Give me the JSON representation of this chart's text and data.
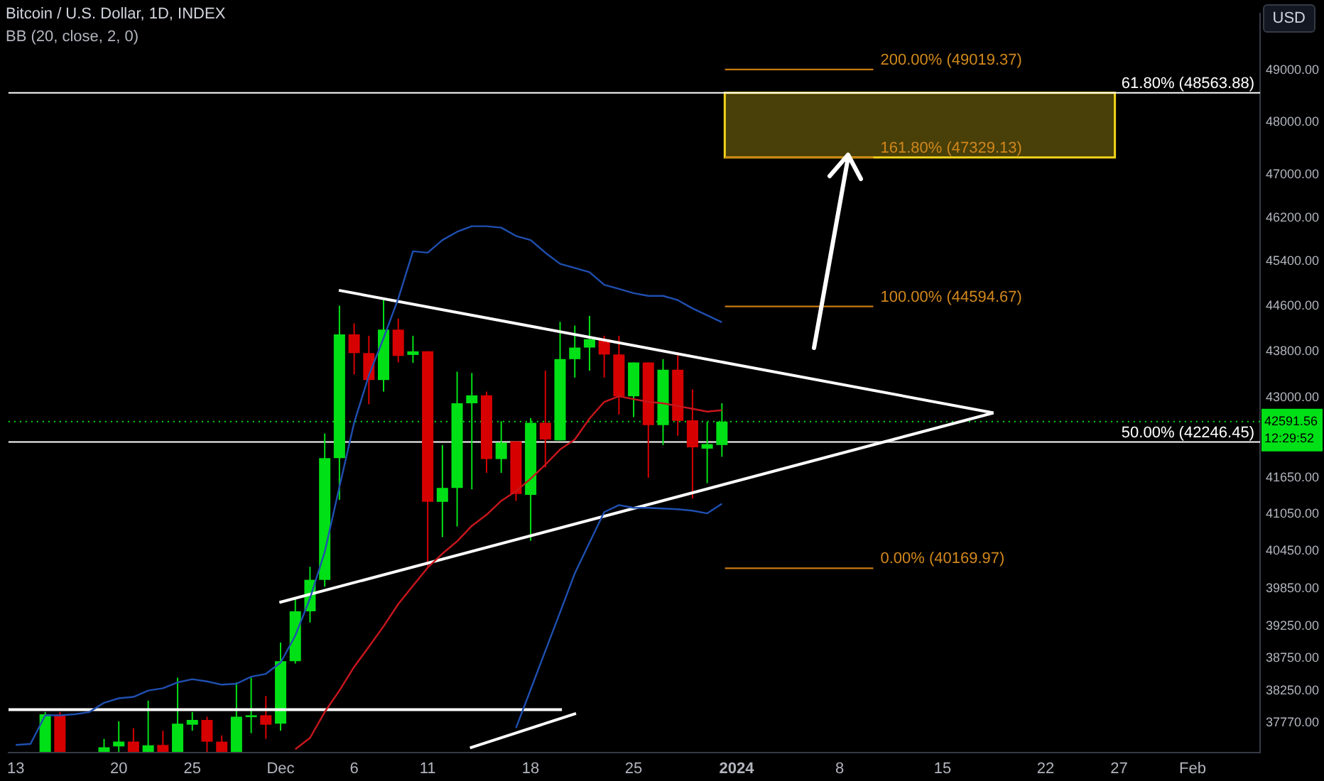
{
  "chart_data": {
    "type": "candlestick",
    "title": "Bitcoin / U.S. Dollar, 1D, INDEX",
    "subtitle": "BB (20, close, 2, 0)",
    "ylabel": "USD",
    "log": true,
    "x": [
      "2023-11-15",
      "2023-11-16",
      "2023-11-19",
      "2023-11-20",
      "2023-11-21",
      "2023-11-22",
      "2023-11-23",
      "2023-11-24",
      "2023-11-25",
      "2023-11-26",
      "2023-11-27",
      "2023-11-28",
      "2023-11-29",
      "2023-11-30",
      "2023-12-01",
      "2023-12-02",
      "2023-12-03",
      "2023-12-04",
      "2023-12-05",
      "2023-12-06",
      "2023-12-07",
      "2023-12-08",
      "2023-12-09",
      "2023-12-10",
      "2023-12-11",
      "2023-12-12",
      "2023-12-13",
      "2023-12-14",
      "2023-12-15",
      "2023-12-16",
      "2023-12-17",
      "2023-12-18",
      "2023-12-19",
      "2023-12-20",
      "2023-12-21",
      "2023-12-22",
      "2023-12-23",
      "2023-12-24",
      "2023-12-25",
      "2023-12-26",
      "2023-12-27",
      "2023-12-28",
      "2023-12-29",
      "2023-12-30",
      "2023-12-31"
    ],
    "ohlc": [
      [
        37330,
        37930,
        37330,
        37895
      ],
      [
        37895,
        37930,
        37330,
        37330
      ],
      [
        37330,
        37525,
        37330,
        37399
      ],
      [
        37413,
        37789,
        37330,
        37483
      ],
      [
        37483,
        37683,
        37330,
        37330
      ],
      [
        37330,
        38104,
        37330,
        37428
      ],
      [
        37434,
        37647,
        37330,
        37330
      ],
      [
        37330,
        38453,
        37330,
        37753
      ],
      [
        37738,
        37929,
        37647,
        37810
      ],
      [
        37810,
        37859,
        37330,
        37483
      ],
      [
        37483,
        37577,
        37330,
        37330
      ],
      [
        37330,
        38381,
        37330,
        37859
      ],
      [
        37852,
        38453,
        37611,
        37880
      ],
      [
        37880,
        38173,
        37525,
        37738
      ],
      [
        37753,
        38996,
        37647,
        38707
      ],
      [
        38707,
        39690,
        38670,
        39485
      ],
      [
        39485,
        40193,
        39309,
        39985
      ],
      [
        39985,
        42390,
        39875,
        41976
      ],
      [
        41976,
        44610,
        41281,
        44101
      ],
      [
        44101,
        44297,
        43401,
        43772
      ],
      [
        43772,
        44076,
        42887,
        43305
      ],
      [
        43305,
        44734,
        43105,
        44184
      ],
      [
        44184,
        44380,
        43609,
        43723
      ],
      [
        43740,
        44076,
        43602,
        43803
      ],
      [
        43803,
        43803,
        40206,
        41249
      ],
      [
        41249,
        42195,
        40673,
        41479
      ],
      [
        41479,
        43449,
        40846,
        42904
      ],
      [
        42904,
        43425,
        41456,
        43040
      ],
      [
        43040,
        43105,
        41730,
        41960
      ],
      [
        41960,
        42597,
        41730,
        42235
      ],
      [
        42259,
        42259,
        41265,
        41380
      ],
      [
        41365,
        42651,
        40612,
        42572
      ],
      [
        42572,
        43465,
        41820,
        42290
      ],
      [
        42274,
        44322,
        42274,
        43667
      ],
      [
        43667,
        44256,
        43346,
        43869
      ],
      [
        43869,
        44428,
        43465,
        44016
      ],
      [
        44016,
        44076,
        43346,
        43747
      ],
      [
        43747,
        44076,
        42711,
        43024
      ],
      [
        43024,
        43609,
        42667,
        43609
      ],
      [
        43609,
        43609,
        41648,
        42532
      ],
      [
        42532,
        43667,
        42195,
        43482
      ],
      [
        43482,
        43789,
        42352,
        42603
      ],
      [
        42613,
        43144,
        41304,
        42157
      ],
      [
        42134,
        42588,
        41557,
        42211
      ],
      [
        42195,
        42904,
        41999,
        42591.56
      ]
    ],
    "colors": [
      "#00e016",
      "#d70000",
      "#00e016",
      "#00e016",
      "#d70000",
      "#00e016",
      "#d70000",
      "#00e016",
      "#00e016",
      "#d70000",
      "#d70000",
      "#00e016",
      "#00e016",
      "#d70000",
      "#00e016",
      "#00e016",
      "#00e016",
      "#00e016",
      "#00e016",
      "#d70000",
      "#d70000",
      "#00e016",
      "#d70000",
      "#00e016",
      "#d70000",
      "#00e016",
      "#00e016",
      "#00e016",
      "#d70000",
      "#00e016",
      "#d70000",
      "#00e016",
      "#d70000",
      "#00e016",
      "#00e016",
      "#00e016",
      "#d70000",
      "#d70000",
      "#00e016",
      "#d70000",
      "#00e016",
      "#d70000",
      "#d70000",
      "#00e016",
      "#00e016"
    ],
    "series": [
      {
        "type": "line",
        "color": "#1f4fb0",
        "x": [
          "2023-11-13",
          "2023-11-14",
          "2023-11-15",
          "2023-11-16",
          "2023-11-17",
          "2023-11-18",
          "2023-11-19",
          "2023-11-20",
          "2023-11-21",
          "2023-11-22",
          "2023-11-23",
          "2023-11-24",
          "2023-11-25",
          "2023-11-26",
          "2023-11-27",
          "2023-11-28",
          "2023-11-29",
          "2023-11-30",
          "2023-12-01",
          "2023-12-02",
          "2023-12-03",
          "2023-12-04",
          "2023-12-05",
          "2023-12-06",
          "2023-12-07",
          "2023-12-08",
          "2023-12-09",
          "2023-12-10",
          "2023-12-11",
          "2023-12-12",
          "2023-12-13",
          "2023-12-14",
          "2023-12-15",
          "2023-12-16",
          "2023-12-17",
          "2023-12-18",
          "2023-12-19",
          "2023-12-20",
          "2023-12-21",
          "2023-12-22",
          "2023-12-23",
          "2023-12-24",
          "2023-12-25",
          "2023-12-26",
          "2023-12-27",
          "2023-12-28",
          "2023-12-29",
          "2023-12-30",
          "2023-12-31"
        ],
        "values": [
          37434,
          37450,
          37880,
          37880,
          37895,
          37929,
          38070,
          38138,
          38159,
          38256,
          38291,
          38381,
          38430,
          38396,
          38346,
          38360,
          38468,
          38512,
          38685,
          39104,
          39690,
          40432,
          41495,
          42572,
          43384,
          44034,
          44734,
          45588,
          45562,
          45792,
          45944,
          46046,
          46046,
          46020,
          45868,
          45792,
          45562,
          45360,
          45285,
          45210,
          44983,
          44908,
          44833,
          44783,
          44783,
          44708,
          44560,
          44437,
          44314
        ]
      },
      {
        "type": "line",
        "color": "#1f4fb0",
        "x": [
          "2023-12-17",
          "2023-12-18",
          "2023-12-19",
          "2023-12-20",
          "2023-12-21",
          "2023-12-22",
          "2023-12-23",
          "2023-12-24",
          "2023-12-25",
          "2023-12-26",
          "2023-12-27",
          "2023-12-28",
          "2023-12-29",
          "2023-12-30",
          "2023-12-31"
        ],
        "values": [
          37688,
          38271,
          38867,
          39470,
          40089,
          40583,
          41081,
          41195,
          41150,
          41150,
          41138,
          41127,
          41104,
          41059,
          41218
        ]
      },
      {
        "type": "line",
        "color": "#c8161d",
        "x": [
          "2023-12-02",
          "2023-12-03",
          "2023-12-04",
          "2023-12-05",
          "2023-12-06",
          "2023-12-07",
          "2023-12-08",
          "2023-12-09",
          "2023-12-10",
          "2023-12-11",
          "2023-12-12",
          "2023-12-13",
          "2023-12-14",
          "2023-12-15",
          "2023-12-16",
          "2023-12-17",
          "2023-12-18",
          "2023-12-19",
          "2023-12-20",
          "2023-12-21",
          "2023-12-22",
          "2023-12-23",
          "2023-12-24",
          "2023-12-25",
          "2023-12-26",
          "2023-12-27",
          "2023-12-28",
          "2023-12-29",
          "2023-12-30",
          "2023-12-31"
        ],
        "values": [
          37370,
          37540,
          37930,
          38256,
          38620,
          38930,
          39250,
          39600,
          39890,
          40180,
          40405,
          40605,
          40855,
          41036,
          41265,
          41425,
          41633,
          41866,
          42120,
          42289,
          42644,
          42928,
          43024,
          42976,
          42928,
          42904,
          42857,
          42810,
          42762,
          42786
        ]
      },
      {
        "type": "line",
        "color": "#ffffff",
        "x": [
          "2023-12-04T23:00",
          "2024-01-18T11:00"
        ],
        "values": [
          44883,
          42740
        ]
      },
      {
        "type": "line",
        "color": "#ffffff",
        "x": [
          "2023-11-30T22:00",
          "2024-01-18T11:00"
        ],
        "values": [
          39625,
          42740
        ]
      },
      {
        "type": "line",
        "color": "#ffffff",
        "x": [
          "2023-11-12T12:00",
          "2023-12-20T03:00"
        ],
        "values": [
          37965,
          37965
        ]
      },
      {
        "type": "line",
        "color": "#ffffff",
        "x": [
          "2023-12-13T21:00",
          "2023-12-21T02:00"
        ],
        "values": [
          37390,
          37908
        ]
      },
      {
        "type": "line",
        "color": "#c77a12",
        "x": [
          "2023-12-31T05:00",
          "2024-01-10T07:00"
        ],
        "values": [
          49019.37,
          49019.37
        ]
      },
      {
        "type": "line",
        "color": "#c77a12",
        "x": [
          "2023-12-31T05:00",
          "2024-01-10T07:00"
        ],
        "values": [
          47329.13,
          47329.13
        ]
      },
      {
        "type": "line",
        "color": "#c77a12",
        "x": [
          "2023-12-31T05:00",
          "2024-01-10T07:00"
        ],
        "values": [
          44594.67,
          44594.67
        ]
      },
      {
        "type": "line",
        "color": "#c77a12",
        "x": [
          "2023-12-31T05:00",
          "2024-01-10T07:00"
        ],
        "values": [
          40169.97,
          40169.97
        ]
      }
    ],
    "ref_lines": [
      {
        "axis": "y",
        "value": 48563.88,
        "label": "61.80% (48563.88)",
        "color": "#ffffff"
      },
      {
        "axis": "y",
        "value": 42246.45,
        "label": "50.00% (42246.45)",
        "color": "#ffffff"
      },
      {
        "axis": "y",
        "value": 42591.56,
        "label": "42591.56",
        "color": "#00e016",
        "line_style": "dotted"
      }
    ],
    "bands": [
      {
        "axis": "y",
        "from": 47329.13,
        "to": 48563.88,
        "color": "#f2d21b"
      }
    ],
    "annotations": [
      {
        "text": "200.00% (49019.37)",
        "x": "2024-01-10T07:00",
        "y": 49019.37
      },
      {
        "text": "161.80% (47329.13)",
        "x": "2024-01-10T07:00",
        "y": 47329.13
      },
      {
        "text": "100.00% (44594.67)",
        "x": "2024-01-10T07:00",
        "y": 44594.67
      },
      {
        "text": "0.00% (40169.97)",
        "x": "2024-01-10T07:00",
        "y": 40169.97
      },
      "12:29:52"
    ],
    "ylim": [
      37320,
      50130
    ],
    "yticks": [
      {
        "value": 37770,
        "label": "37770.00"
      },
      {
        "value": 38250,
        "label": "38250.00"
      },
      {
        "value": 38750,
        "label": "38750.00"
      },
      {
        "value": 39250,
        "label": "39250.00"
      },
      {
        "value": 39850,
        "label": "39850.00"
      },
      {
        "value": 40450,
        "label": "40450.00"
      },
      {
        "value": 41050,
        "label": "41050.00"
      },
      {
        "value": 41650,
        "label": "41650.00"
      },
      {
        "value": 43000,
        "label": "43000.00"
      },
      {
        "value": 43800,
        "label": "43800.00"
      },
      {
        "value": 44600,
        "label": "44600.00"
      },
      {
        "value": 45400,
        "label": "45400.00"
      },
      {
        "value": 46200,
        "label": "46200.00"
      },
      {
        "value": 47000,
        "label": "47000.00"
      },
      {
        "value": 48000,
        "label": "48000.00"
      },
      {
        "value": 49000,
        "label": "49000.00"
      }
    ],
    "xlim": [
      "2023-11-12T12:00",
      "2024-02-05T14:00"
    ],
    "xticks": [
      {
        "value": "2023-11-13",
        "label": "13"
      },
      {
        "value": "2023-11-20",
        "label": "20"
      },
      {
        "value": "2023-11-25",
        "label": "25"
      },
      {
        "value": "2023-12-01",
        "label": "Dec"
      },
      {
        "value": "2023-12-06",
        "label": "6"
      },
      {
        "value": "2023-12-11",
        "label": "11"
      },
      {
        "value": "2023-12-18",
        "label": "18"
      },
      {
        "value": "2023-12-25",
        "label": "25"
      },
      {
        "value": "2024-01-01",
        "label": "2024"
      },
      {
        "value": "2024-01-08",
        "label": "8"
      },
      {
        "value": "2024-01-15",
        "label": "15"
      },
      {
        "value": "2024-01-22",
        "label": "22"
      },
      {
        "value": "2024-01-27",
        "label": "27"
      },
      {
        "value": "2024-02-01",
        "label": "Feb"
      }
    ]
  }
}
